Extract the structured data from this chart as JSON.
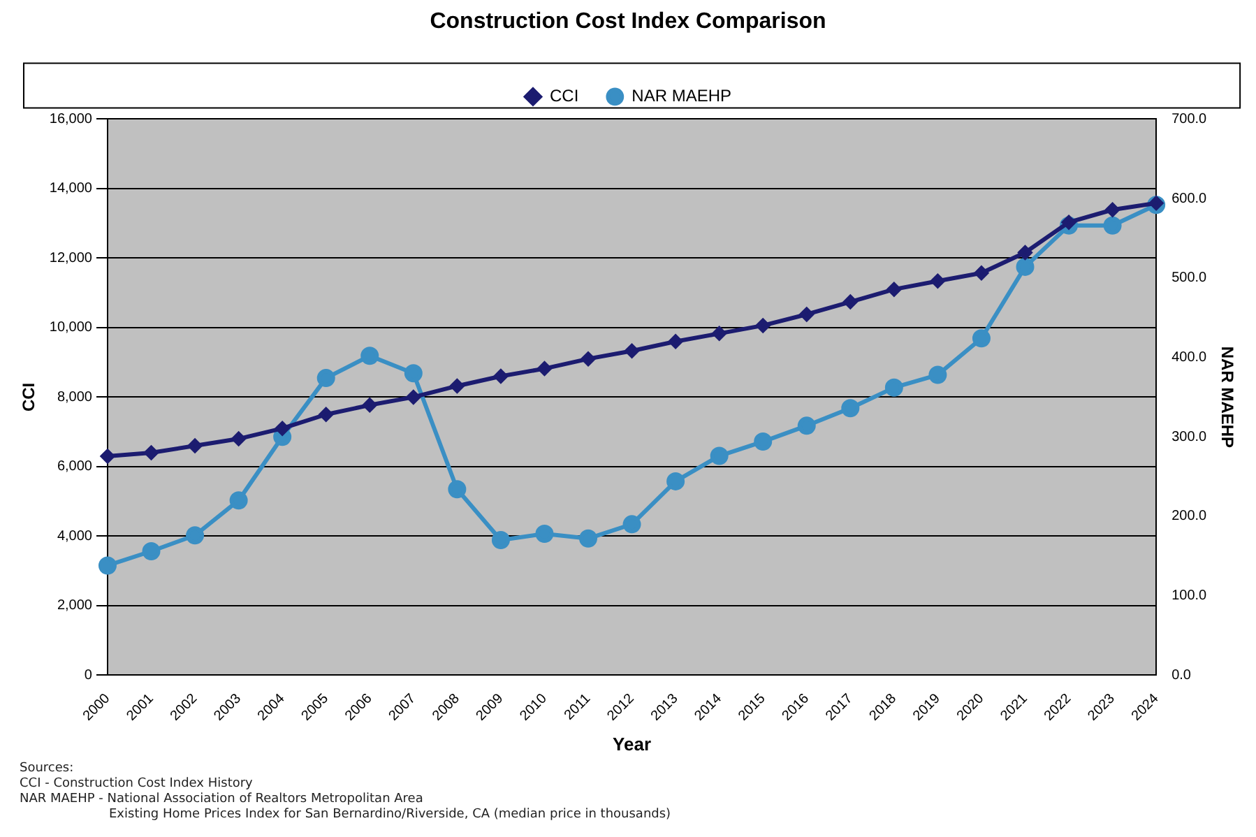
{
  "chart_data": {
    "type": "line",
    "title": "Construction Cost Index Comparison",
    "xlabel": "Year",
    "ylabel": "CCI",
    "y2label": "NAR MAEHP",
    "categories": [
      "2000",
      "2001",
      "2002",
      "2003",
      "2004",
      "2005",
      "2006",
      "2007",
      "2008",
      "2009",
      "2010",
      "2011",
      "2012",
      "2013",
      "2014",
      "2015",
      "2016",
      "2017",
      "2018",
      "2019",
      "2020",
      "2021",
      "2022",
      "2023",
      "2024"
    ],
    "series": [
      {
        "name": "CCI",
        "color": "#1c1c70",
        "marker": "diamond",
        "values": [
          6300,
          6400,
          6600,
          6800,
          7100,
          7500,
          7770,
          8000,
          8320,
          8600,
          8820,
          9100,
          9330,
          9600,
          9830,
          10060,
          10380,
          10740,
          11100,
          11340,
          11570,
          12160,
          13030,
          13390,
          13580
        ]
      },
      {
        "name": "NAR MAEHP",
        "color": "#3a8fc4",
        "marker": "circle",
        "axis": "y2",
        "values": [
          138,
          156,
          176,
          220,
          300,
          374,
          402,
          380,
          234,
          170,
          178,
          172,
          190,
          244,
          276,
          294,
          314,
          336,
          362,
          378,
          424,
          514,
          566,
          566,
          592
        ]
      }
    ],
    "ylim": [
      0,
      16000
    ],
    "yticks": [
      0,
      {
        "value": 2000,
        "label": "2,000"
      },
      {
        "value": 4000,
        "label": "4,000"
      },
      {
        "value": 6000,
        "label": "6,000"
      },
      {
        "value": 8000,
        "label": "8,000"
      },
      {
        "value": 10000,
        "label": "10,000"
      },
      {
        "value": 12000,
        "label": "12,000"
      },
      {
        "value": 14000,
        "label": "14,000"
      },
      {
        "value": 16000,
        "label": "16,000"
      }
    ],
    "y2lim": [
      0,
      700
    ],
    "y2ticks": [
      {
        "value": 0,
        "label": "0.0"
      },
      {
        "value": 100,
        "label": "100.0"
      },
      {
        "value": 200,
        "label": "200.0"
      },
      {
        "value": 300,
        "label": "300.0"
      },
      {
        "value": 400,
        "label": "400.0"
      },
      {
        "value": 500,
        "label": "500.0"
      },
      {
        "value": 600,
        "label": "600.0"
      },
      {
        "value": 700,
        "label": "700.0"
      }
    ],
    "grid": "y",
    "legend": "top",
    "annotations": [
      "Sources:",
      "CCI - Construction Cost Index History",
      "NAR MAEHP - National Association of Realtors Metropolitan Area",
      "Existing Home Prices Index for San Bernardino/Riverside, CA (median price in thousands)"
    ]
  }
}
